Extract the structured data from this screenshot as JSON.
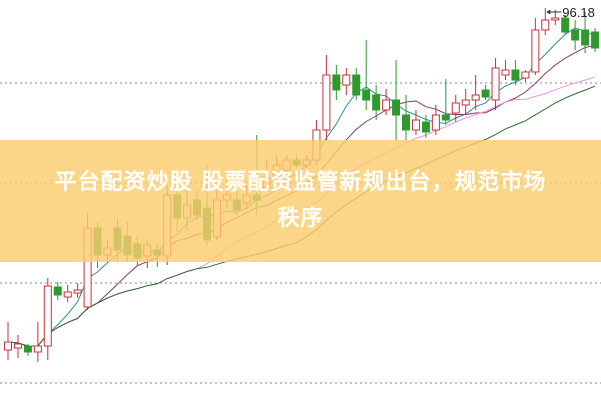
{
  "chart_data": {
    "type": "candlestick",
    "title": "",
    "xlabel": "",
    "ylabel": "",
    "grid": "horizontal-dotted",
    "max_label": "96.18",
    "up_color": "#c8303a",
    "down_color": "#2e9a2e",
    "candles_ohlc": [
      [
        61.98,
        62.78,
        64.78,
        60.98
      ],
      [
        62.18,
        62.58,
        63.48,
        61.18
      ],
      [
        62.38,
        61.78,
        62.58,
        61.38
      ],
      [
        61.78,
        62.38,
        64.78,
        60.78
      ],
      [
        62.38,
        68.38,
        69.18,
        60.98
      ],
      [
        68.28,
        67.48,
        68.78,
        66.98
      ],
      [
        67.28,
        67.78,
        68.48,
        66.78
      ],
      [
        67.68,
        67.98,
        68.68,
        67.18
      ],
      [
        66.28,
        74.18,
        75.68,
        65.98
      ],
      [
        74.18,
        71.48,
        74.78,
        70.18
      ],
      [
        71.48,
        72.18,
        72.98,
        70.78
      ],
      [
        74.18,
        71.98,
        75.18,
        70.78
      ],
      [
        73.38,
        71.48,
        74.78,
        70.78
      ],
      [
        72.58,
        71.18,
        73.38,
        70.38
      ],
      [
        71.38,
        72.48,
        72.98,
        70.18
      ],
      [
        71.98,
        71.48,
        72.58,
        70.28
      ],
      [
        71.38,
        77.48,
        78.48,
        70.48
      ],
      [
        77.48,
        75.18,
        77.98,
        73.78
      ],
      [
        75.18,
        76.48,
        78.48,
        73.98
      ],
      [
        76.98,
        75.48,
        77.98,
        74.98
      ],
      [
        76.18,
        72.98,
        80.48,
        72.48
      ],
      [
        73.28,
        76.98,
        78.48,
        72.98
      ],
      [
        76.98,
        77.48,
        78.98,
        76.18
      ],
      [
        76.98,
        75.98,
        77.98,
        75.48
      ],
      [
        76.68,
        77.48,
        78.48,
        75.98
      ],
      [
        77.48,
        76.98,
        83.48,
        75.48
      ],
      [
        78.18,
        79.18,
        80.98,
        77.98
      ],
      [
        79.18,
        80.48,
        81.48,
        78.48
      ],
      [
        79.98,
        80.98,
        81.48,
        79.48
      ],
      [
        80.98,
        80.48,
        81.48,
        80.28
      ],
      [
        80.48,
        80.98,
        81.48,
        80.18
      ],
      [
        80.98,
        83.98,
        84.98,
        80.48
      ],
      [
        83.98,
        89.48,
        91.48,
        82.98
      ],
      [
        89.48,
        87.98,
        90.48,
        86.98
      ],
      [
        88.48,
        89.48,
        90.18,
        87.48
      ],
      [
        89.48,
        87.48,
        90.18,
        86.98
      ],
      [
        87.98,
        86.98,
        92.98,
        85.98
      ],
      [
        87.48,
        85.98,
        88.48,
        84.98
      ],
      [
        85.98,
        86.98,
        88.08,
        85.48
      ],
      [
        86.98,
        85.48,
        90.98,
        82.98
      ],
      [
        85.48,
        83.98,
        87.48,
        82.98
      ],
      [
        83.98,
        84.98,
        85.98,
        83.48
      ],
      [
        84.78,
        83.78,
        85.48,
        83.18
      ],
      [
        83.98,
        85.48,
        86.48,
        83.48
      ],
      [
        85.48,
        84.98,
        89.08,
        84.48
      ],
      [
        85.68,
        86.68,
        87.48,
        84.78
      ],
      [
        86.48,
        86.98,
        88.08,
        85.48
      ],
      [
        86.98,
        87.48,
        89.48,
        85.98
      ],
      [
        87.98,
        87.28,
        88.48,
        86.98
      ],
      [
        86.98,
        90.18,
        91.18,
        85.98
      ],
      [
        89.48,
        89.98,
        90.98,
        88.98
      ],
      [
        89.98,
        88.98,
        90.98,
        88.48
      ],
      [
        89.18,
        89.78,
        89.98,
        88.78
      ],
      [
        89.78,
        93.98,
        95.18,
        89.48
      ],
      [
        93.98,
        94.98,
        96.18,
        93.48
      ],
      [
        94.98,
        95.18,
        95.98,
        94.48
      ],
      [
        95.18,
        93.78,
        95.48,
        93.48
      ],
      [
        93.98,
        92.98,
        94.98,
        91.98
      ],
      [
        93.98,
        92.48,
        95.78,
        91.68
      ],
      [
        93.78,
        92.18,
        94.18,
        91.78
      ]
    ],
    "moving_averages": [
      {
        "period": 5,
        "color": "#2f8f8f"
      },
      {
        "period": 10,
        "color": "#8a3a6a"
      },
      {
        "period": 20,
        "color": "#e39ae0"
      },
      {
        "period": 30,
        "color": "#2e6b2e"
      }
    ]
  },
  "banner": {
    "line1": "平台配资炒股 股票配资监管新规出台，规范市场",
    "line2": "秩序"
  }
}
